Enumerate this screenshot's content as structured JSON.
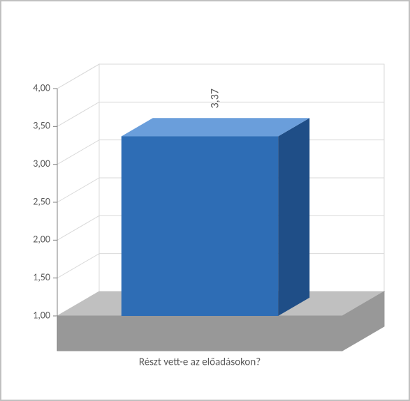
{
  "chart": {
    "type": "bar-3d",
    "categories": [
      "Részt vett-e az előadásokon?"
    ],
    "values": [
      3.37
    ],
    "data_labels": [
      "3,37"
    ],
    "bar_color_front": "#2e6db5",
    "bar_color_top": "#6a9edb",
    "bar_color_side": "#1f4e87",
    "floor_color_top": "#c0c0c0",
    "floor_color_side": "#989898",
    "wall_fill": "none",
    "wall_stroke": "#d9d9d9",
    "grid_color": "#d9d9d9",
    "axis_label_color": "#595959",
    "background_color": "#ffffff",
    "border_color": "#c0c0c0",
    "ylim": [
      1.0,
      4.0
    ],
    "ytick_step": 0.5,
    "ytick_labels": [
      "1,00",
      "1,50",
      "2,00",
      "2,50",
      "3,00",
      "3,50",
      "4,00"
    ],
    "label_fontsize": 14,
    "category_fontsize": 15,
    "datalabel_fontsize": 16,
    "bar_rel_width": 0.55,
    "depth_dx": 60,
    "depth_dy": 35,
    "front_base_offset": 50,
    "data_label_rotation": -90
  }
}
